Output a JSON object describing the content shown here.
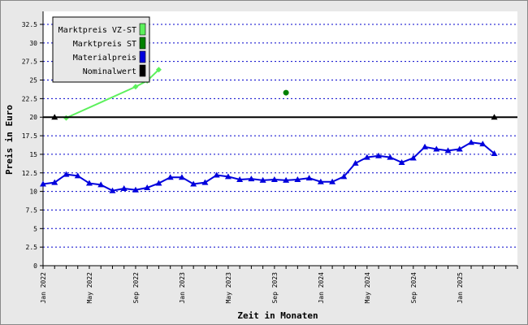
{
  "chart_data": {
    "type": "line",
    "title": "",
    "xlabel": "Zeit in Monaten",
    "ylabel": "Preis in Euro",
    "ylim": [
      0,
      34.25
    ],
    "y_ticks": [
      "0",
      "2.5",
      "5",
      "7.5",
      "10",
      "12.5",
      "15",
      "17.5",
      "20",
      "22.5",
      "25",
      "27.5",
      "30",
      "32.5"
    ],
    "x_range": [
      "2022-01",
      "2025-06"
    ],
    "x_ticks": [
      {
        "month": "2022-01",
        "label": "Jan 2022"
      },
      {
        "month": "2022-05",
        "label": "May 2022"
      },
      {
        "month": "2022-09",
        "label": "Sep 2022"
      },
      {
        "month": "2023-01",
        "label": "Jan 2023"
      },
      {
        "month": "2023-05",
        "label": "May 2023"
      },
      {
        "month": "2023-09",
        "label": "Sep 2023"
      },
      {
        "month": "2024-01",
        "label": "Jan 2024"
      },
      {
        "month": "2024-05",
        "label": "May 2024"
      },
      {
        "month": "2024-09",
        "label": "Sep 2024"
      },
      {
        "month": "2025-01",
        "label": "Jan 2025"
      }
    ],
    "grid": "horizontal dotted",
    "legend_position": "top-left",
    "series": [
      {
        "name": "Marktpreis VZ-ST",
        "color": "#5cf05c",
        "marker": "diamond",
        "x": [
          "2022-03",
          "2022-09",
          "2022-10",
          "2022-11"
        ],
        "y": [
          19.9,
          24.1,
          24.9,
          26.4
        ]
      },
      {
        "name": "Marktpreis ST",
        "color": "#008000",
        "marker": "circle",
        "x": [
          "2023-10"
        ],
        "y": [
          23.3
        ]
      },
      {
        "name": "Materialpreis",
        "color": "#0000dd",
        "marker": "triangle",
        "x": [
          "2022-01",
          "2022-02",
          "2022-03",
          "2022-04",
          "2022-05",
          "2022-06",
          "2022-07",
          "2022-08",
          "2022-09",
          "2022-10",
          "2022-11",
          "2022-12",
          "2023-01",
          "2023-02",
          "2023-03",
          "2023-04",
          "2023-05",
          "2023-06",
          "2023-07",
          "2023-08",
          "2023-09",
          "2023-10",
          "2023-11",
          "2023-12",
          "2024-01",
          "2024-02",
          "2024-03",
          "2024-04",
          "2024-05",
          "2024-06",
          "2024-07",
          "2024-08",
          "2024-09",
          "2024-10",
          "2024-11",
          "2024-12",
          "2025-01",
          "2025-02",
          "2025-03",
          "2025-04"
        ],
        "y": [
          11.0,
          11.2,
          12.3,
          12.1,
          11.1,
          10.9,
          10.1,
          10.4,
          10.2,
          10.5,
          11.1,
          11.9,
          11.9,
          11.0,
          11.2,
          12.2,
          12.0,
          11.6,
          11.7,
          11.5,
          11.6,
          11.5,
          11.6,
          11.8,
          11.3,
          11.3,
          12.0,
          13.8,
          14.6,
          14.8,
          14.6,
          13.9,
          14.5,
          16.0,
          15.7,
          15.5,
          15.7,
          16.6,
          16.4,
          15.1
        ]
      },
      {
        "name": "Nominalwert",
        "color": "#000000",
        "marker": "triangle",
        "x": [
          "2022-02",
          "2025-04"
        ],
        "y": [
          20,
          20
        ]
      }
    ]
  }
}
